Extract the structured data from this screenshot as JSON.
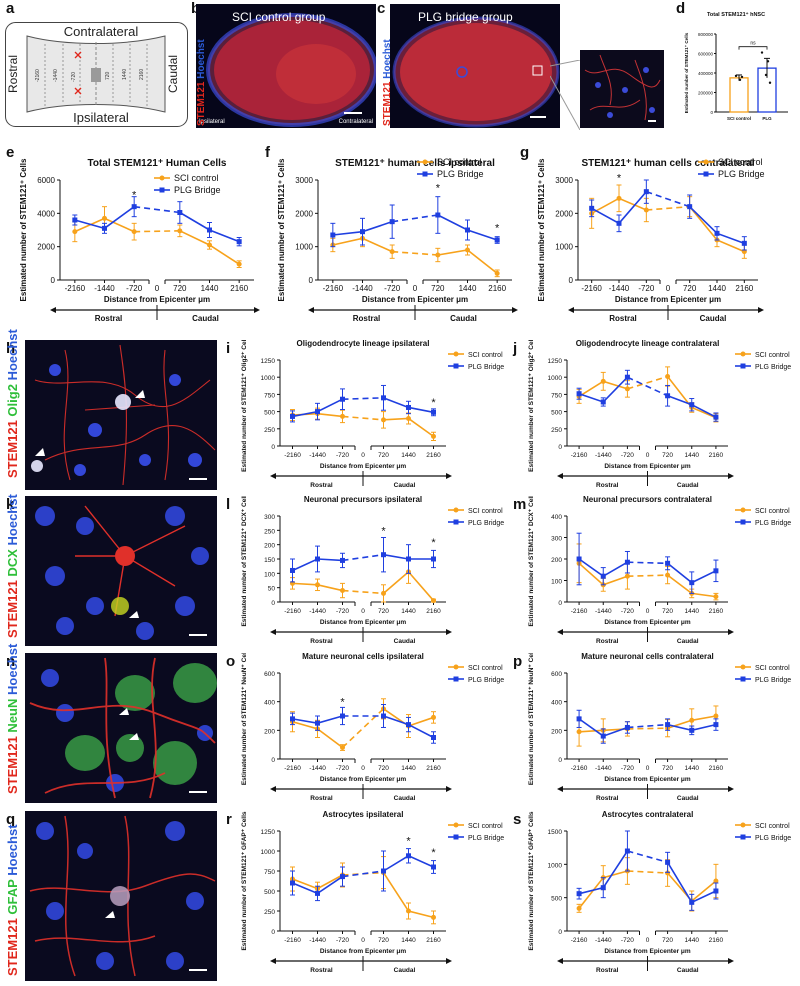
{
  "panel_letters": [
    "a",
    "b",
    "c",
    "d",
    "e",
    "f",
    "g",
    "h",
    "i",
    "j",
    "k",
    "l",
    "m",
    "n",
    "o",
    "p",
    "q",
    "r",
    "s"
  ],
  "schematic": {
    "contralateral": "Contralateral",
    "ipsilateral": "Ipsilateral",
    "rostral": "Rostral",
    "caudal": "Caudal",
    "positions": [
      "-2160",
      "-1440",
      "-720",
      "720",
      "1440",
      "2160"
    ]
  },
  "micro_b": {
    "title": "SCI control group",
    "left": "Ipsilateral",
    "right": "Contralateral",
    "stain_red": "STEM121",
    "stain_blue": "Hoechst"
  },
  "micro_c": {
    "title": "PLG bridge group",
    "stain_red": "STEM121",
    "stain_blue": "Hoechst"
  },
  "micro_h": {
    "s1": "STEM121",
    "s2": "Olig2",
    "s3": "Hoechst"
  },
  "micro_k": {
    "s1": "STEM121",
    "s2": "DCX",
    "s3": "Hoechst"
  },
  "micro_n": {
    "s1": "STEM121",
    "s2": "NeuN",
    "s3": "Hoechst"
  },
  "micro_q": {
    "s1": "STEM121",
    "s2": "GFAP",
    "s3": "Hoechst"
  },
  "colors": {
    "sci": "#f7a21b",
    "plg": "#1f3fe0"
  },
  "legend": {
    "sci": "SCI control",
    "plg": "PLG Bridge"
  },
  "axis": {
    "x_label": "Distance from Epicenter μm",
    "rostral": "Rostral",
    "caudal": "Caudal",
    "zero": "0"
  },
  "chart_data": [
    {
      "id": "d",
      "type": "bar",
      "title": "Total STEM121⁺ hNSC",
      "ylabel": "Estimated number of STEM121⁺ Cells",
      "categories": [
        "SCI control",
        "PLG"
      ],
      "values": [
        350000,
        450000
      ],
      "errors": [
        30000,
        100000
      ],
      "ylim": [
        0,
        800000
      ],
      "yticks": [
        "0",
        "200000",
        "400000",
        "600000",
        "800000"
      ],
      "annotation": "ns"
    },
    {
      "id": "e",
      "type": "line",
      "title": "Total STEM121⁺ Human Cells",
      "ylabel": "Estimated number of STEM121⁺ Cells",
      "x": [
        -2160,
        -1440,
        -720,
        720,
        1440,
        2160
      ],
      "x_labels": [
        "-2160",
        "-1440",
        "-720",
        "720",
        "1440",
        "2160"
      ],
      "ylim": [
        0,
        6000
      ],
      "yticks": [
        "0",
        "2000",
        "4000",
        "6000"
      ],
      "legend": true,
      "series": [
        {
          "name": "SCI control",
          "values": [
            2900,
            3700,
            2900,
            2950,
            2100,
            950
          ],
          "errors": [
            600,
            700,
            500,
            350,
            250,
            200
          ]
        },
        {
          "name": "PLG Bridge",
          "values": [
            3600,
            3100,
            4400,
            4050,
            3000,
            2300
          ],
          "errors": [
            300,
            300,
            600,
            650,
            450,
            250
          ]
        }
      ],
      "stars": [
        {
          "x": -720,
          "y": 4900
        }
      ]
    },
    {
      "id": "f",
      "type": "line",
      "title": "STEM121⁺ human cells ipsilateral",
      "ylabel": "Estimated number of STEM121⁺ Cells",
      "x": [
        -2160,
        -1440,
        -720,
        720,
        1440,
        2160
      ],
      "x_labels": [
        "-2160",
        "-1440",
        "-720",
        "720",
        "1440",
        "2160"
      ],
      "ylim": [
        0,
        3000
      ],
      "yticks": [
        "0",
        "1000",
        "2000",
        "3000"
      ],
      "legend": true,
      "series": [
        {
          "name": "SCI control",
          "values": [
            1050,
            1250,
            850,
            750,
            900,
            200
          ],
          "errors": [
            200,
            250,
            200,
            200,
            150,
            100
          ]
        },
        {
          "name": "PLG Bridge",
          "values": [
            1350,
            1450,
            1750,
            1950,
            1500,
            1200
          ],
          "errors": [
            350,
            400,
            500,
            550,
            300,
            100
          ]
        }
      ],
      "stars": [
        {
          "x": 720,
          "y": 2650
        },
        {
          "x": 2160,
          "y": 1450
        }
      ]
    },
    {
      "id": "g",
      "type": "line",
      "title": "STEM121⁺ human cells contralateral",
      "ylabel": "Estimated number of STEM121⁺ Cells",
      "x": [
        -2160,
        -1440,
        -720,
        720,
        1440,
        2160
      ],
      "x_labels": [
        "-2160",
        "-1440",
        "-720",
        "720",
        "1440",
        "2160"
      ],
      "ylim": [
        0,
        3000
      ],
      "yticks": [
        "0",
        "1000",
        "2000",
        "3000"
      ],
      "legend": true,
      "series": [
        {
          "name": "SCI control",
          "values": [
            2000,
            2450,
            2100,
            2200,
            1200,
            850
          ],
          "errors": [
            450,
            400,
            350,
            300,
            200,
            200
          ]
        },
        {
          "name": "PLG Bridge",
          "values": [
            2150,
            1700,
            2650,
            2200,
            1400,
            1100
          ],
          "errors": [
            250,
            250,
            350,
            350,
            200,
            200
          ]
        }
      ],
      "stars": [
        {
          "x": -1440,
          "y": 2950
        }
      ]
    },
    {
      "id": "i",
      "type": "line",
      "title": "Oligodendrocyte lineage ipsilateral",
      "ylabel": "Estimated number of STEM121⁺ Olig2⁺ Cells",
      "x": [
        -2160,
        -1440,
        -720,
        720,
        1440,
        2160
      ],
      "x_labels": [
        "-2160",
        "-1440",
        "-720",
        "720",
        "1440",
        "2160"
      ],
      "ylim": [
        0,
        1250
      ],
      "yticks": [
        "0",
        "250",
        "500",
        "750",
        "1000",
        "1250"
      ],
      "legend": true,
      "series": [
        {
          "name": "SCI control",
          "values": [
            450,
            470,
            430,
            380,
            400,
            140
          ],
          "errors": [
            80,
            80,
            90,
            120,
            80,
            60
          ]
        },
        {
          "name": "PLG Bridge",
          "values": [
            430,
            500,
            680,
            700,
            560,
            490
          ],
          "errors": [
            80,
            120,
            150,
            180,
            90,
            50
          ]
        }
      ],
      "stars": [
        {
          "x": 2160,
          "y": 580
        }
      ]
    },
    {
      "id": "j",
      "type": "line",
      "title": "Oligodendrocyte lineage contralateral",
      "ylabel": "Estimated number of STEM121⁺ Olig2⁺ Cells",
      "x": [
        -2160,
        -1440,
        -720,
        720,
        1440,
        2160
      ],
      "x_labels": [
        "-2160",
        "-1440",
        "-720",
        "720",
        "1440",
        "2160"
      ],
      "ylim": [
        0,
        1250
      ],
      "yticks": [
        "0",
        "250",
        "500",
        "750",
        "1000",
        "1250"
      ],
      "legend": true,
      "series": [
        {
          "name": "SCI control",
          "values": [
            720,
            940,
            830,
            1010,
            560,
            410
          ],
          "errors": [
            100,
            130,
            120,
            140,
            70,
            60
          ]
        },
        {
          "name": "PLG Bridge",
          "values": [
            760,
            640,
            1000,
            730,
            600,
            420
          ],
          "errors": [
            80,
            60,
            100,
            150,
            90,
            60
          ]
        }
      ],
      "stars": []
    },
    {
      "id": "l",
      "type": "line",
      "title": "Neuronal precursors ipsilateral",
      "ylabel": "Estimated number of STEM121⁺ DCX⁺ Cells",
      "x": [
        -2160,
        -1440,
        -720,
        720,
        1440,
        2160
      ],
      "x_labels": [
        "-2160",
        "-1440",
        "-720",
        "720",
        "1440",
        "2160"
      ],
      "ylim": [
        0,
        300
      ],
      "yticks": [
        "0",
        "50",
        "100",
        "150",
        "200",
        "250",
        "300"
      ],
      "legend": true,
      "series": [
        {
          "name": "SCI control",
          "values": [
            65,
            60,
            40,
            30,
            105,
            5
          ],
          "errors": [
            20,
            20,
            25,
            30,
            40,
            5
          ]
        },
        {
          "name": "PLG Bridge",
          "values": [
            110,
            150,
            145,
            165,
            150,
            150
          ],
          "errors": [
            40,
            45,
            25,
            60,
            50,
            30
          ]
        }
      ],
      "stars": [
        {
          "x": 720,
          "y": 235
        },
        {
          "x": 2160,
          "y": 195
        }
      ]
    },
    {
      "id": "m",
      "type": "line",
      "title": "Neuronal precursors contralateral",
      "ylabel": "Estimated number of STEM121⁺ DCX⁺ Cells",
      "x": [
        -2160,
        -1440,
        -720,
        720,
        1440,
        2160
      ],
      "x_labels": [
        "-2160",
        "-1440",
        "-720",
        "720",
        "1440",
        "2160"
      ],
      "ylim": [
        0,
        400
      ],
      "yticks": [
        "0",
        "100",
        "200",
        "300",
        "400"
      ],
      "legend": true,
      "series": [
        {
          "name": "SCI control",
          "values": [
            180,
            80,
            120,
            125,
            40,
            25
          ],
          "errors": [
            90,
            30,
            60,
            40,
            20,
            15
          ]
        },
        {
          "name": "PLG Bridge",
          "values": [
            200,
            120,
            185,
            180,
            90,
            145
          ],
          "errors": [
            120,
            40,
            50,
            30,
            50,
            50
          ]
        }
      ],
      "stars": []
    },
    {
      "id": "o",
      "type": "line",
      "title": "Mature neuronal cells ipsilateral",
      "ylabel": "Estimated number of STEM121⁺ NeuN⁺ Cells",
      "x": [
        -2160,
        -1440,
        -720,
        720,
        1440,
        2160
      ],
      "x_labels": [
        "-2160",
        "-1440",
        "-720",
        "720",
        "1440",
        "2160"
      ],
      "ylim": [
        0,
        600
      ],
      "yticks": [
        "0",
        "200",
        "400",
        "600"
      ],
      "legend": true,
      "series": [
        {
          "name": "SCI control",
          "values": [
            260,
            210,
            80,
            350,
            230,
            290
          ],
          "errors": [
            70,
            60,
            20,
            70,
            80,
            40
          ]
        },
        {
          "name": "PLG Bridge",
          "values": [
            280,
            250,
            300,
            300,
            240,
            150
          ],
          "errors": [
            40,
            50,
            60,
            80,
            50,
            40
          ]
        }
      ],
      "stars": [
        {
          "x": -720,
          "y": 375
        }
      ]
    },
    {
      "id": "p",
      "type": "line",
      "title": "Mature neuronal cells contralateral",
      "ylabel": "Estimated number of STEM121⁺ NeuN⁺ Cells",
      "x": [
        -2160,
        -1440,
        -720,
        720,
        1440,
        2160
      ],
      "x_labels": [
        "-2160",
        "-1440",
        "-720",
        "720",
        "1440",
        "2160"
      ],
      "ylim": [
        0,
        600
      ],
      "yticks": [
        "0",
        "200",
        "400",
        "600"
      ],
      "legend": true,
      "series": [
        {
          "name": "SCI control",
          "values": [
            190,
            200,
            210,
            215,
            270,
            300
          ],
          "errors": [
            100,
            80,
            50,
            60,
            80,
            70
          ]
        },
        {
          "name": "PLG Bridge",
          "values": [
            280,
            160,
            220,
            240,
            200,
            240
          ],
          "errors": [
            60,
            50,
            40,
            40,
            30,
            40
          ]
        }
      ],
      "stars": []
    },
    {
      "id": "r",
      "type": "line",
      "title": "Astrocytes ipsilateral",
      "ylabel": "Estimated number of STEM121⁺ GFAP⁺ Cells",
      "x": [
        -2160,
        -1440,
        -720,
        720,
        1440,
        2160
      ],
      "x_labels": [
        "-2160",
        "-1440",
        "-720",
        "720",
        "1440",
        "2160"
      ],
      "ylim": [
        0,
        1250
      ],
      "yticks": [
        "0",
        "250",
        "500",
        "750",
        "1000",
        "1250"
      ],
      "legend": true,
      "series": [
        {
          "name": "SCI control",
          "values": [
            650,
            530,
            700,
            730,
            250,
            170
          ],
          "errors": [
            150,
            80,
            150,
            200,
            100,
            80
          ]
        },
        {
          "name": "PLG Bridge",
          "values": [
            600,
            470,
            680,
            750,
            940,
            800
          ],
          "errors": [
            150,
            90,
            120,
            250,
            90,
            80
          ]
        }
      ],
      "stars": [
        {
          "x": 1440,
          "y": 1080
        },
        {
          "x": 2160,
          "y": 940
        }
      ]
    },
    {
      "id": "s",
      "type": "line",
      "title": "Astrocytes contralateral",
      "ylabel": "Estimated number of STEM121⁺ GFAP⁺ Cells",
      "x": [
        -2160,
        -1440,
        -720,
        720,
        1440,
        2160
      ],
      "x_labels": [
        "-2160",
        "-1440",
        "-720",
        "720",
        "1440",
        "2160"
      ],
      "ylim": [
        0,
        1500
      ],
      "yticks": [
        "0",
        "500",
        "1000",
        "1500"
      ],
      "legend": true,
      "series": [
        {
          "name": "SCI control",
          "values": [
            340,
            800,
            900,
            870,
            450,
            750
          ],
          "errors": [
            60,
            180,
            200,
            200,
            150,
            250
          ]
        },
        {
          "name": "PLG Bridge",
          "values": [
            560,
            650,
            1200,
            1030,
            430,
            600
          ],
          "errors": [
            80,
            150,
            300,
            150,
            120,
            120
          ]
        }
      ],
      "stars": []
    }
  ]
}
